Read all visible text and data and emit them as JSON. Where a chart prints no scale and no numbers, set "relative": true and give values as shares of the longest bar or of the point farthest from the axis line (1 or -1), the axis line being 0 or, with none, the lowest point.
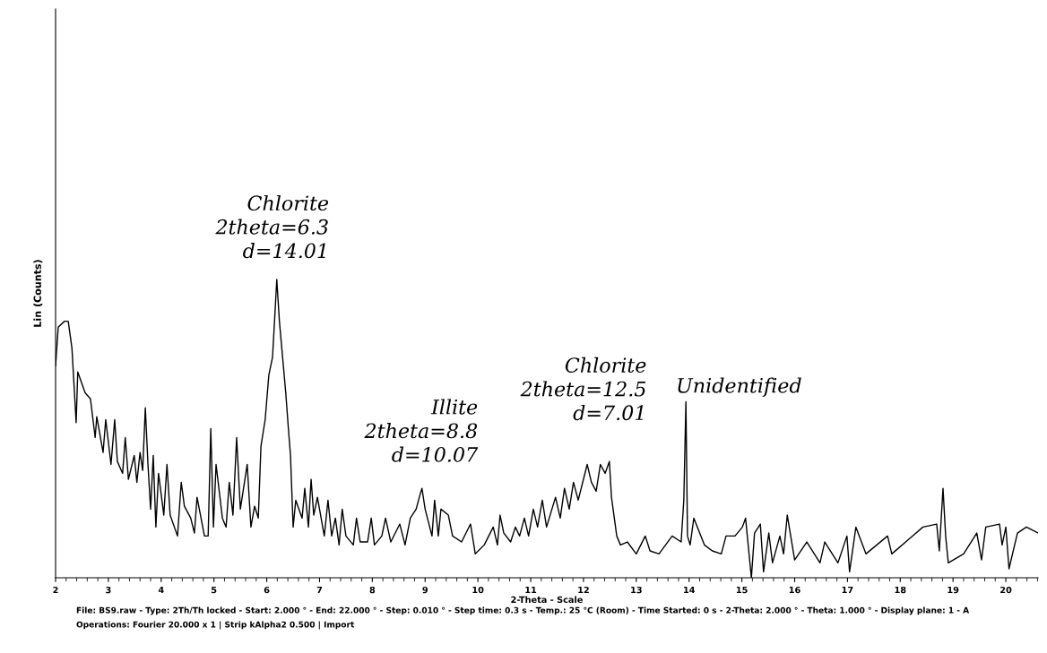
{
  "chart_data": {
    "type": "line",
    "relative": true,
    "xlabel": "2-Theta - Scale",
    "ylabel": "Lin (Counts)",
    "xlim": [
      2,
      20.61
    ],
    "xticks": [
      2,
      3,
      4,
      5,
      6,
      7,
      8,
      9,
      10,
      11,
      12,
      13,
      14,
      15,
      16,
      17,
      18,
      19,
      20
    ],
    "marker": "none",
    "line_style": "solid",
    "annotations": [
      {
        "text": "Chlorite\n2theta=6.3\nd=14.01",
        "x": 6.19,
        "y": 1.0
      },
      {
        "text": "Illite\n2theta=8.8\nd=10.07",
        "x": 8.94,
        "y": 0.3
      },
      {
        "text": "Chlorite\n2theta=12.5\nd=7.01",
        "x": 12.49,
        "y": 0.39
      },
      {
        "text": "Unidentified",
        "x": 13.94,
        "y": 0.59
      },
      "File: BS9.raw - Type: 2Th/Th locked - Start: 2.000 ° - End: 22.000 ° - Step: 0.010 ° - Step time: 0.3 s - Temp.: 25 °C (Room) - Time Started: 0 s - 2-Theta: 2.000 ° - Theta: 1.000 ° - Display plane: 1 - A",
      "Operations: Fourier 20.000 x 1 | Strip kAlpha2 0.500 | Import"
    ],
    "series": [
      {
        "color": "#000000",
        "x": [
          2.0,
          2.05,
          2.17,
          2.24,
          2.31,
          2.39,
          2.42,
          2.56,
          2.66,
          2.75,
          2.78,
          2.9,
          2.95,
          3.05,
          3.12,
          3.17,
          3.27,
          3.32,
          3.38,
          3.49,
          3.54,
          3.6,
          3.65,
          3.7,
          3.75,
          3.8,
          3.85,
          3.9,
          3.95,
          4.05,
          4.11,
          4.17,
          4.31,
          4.38,
          4.44,
          4.56,
          4.63,
          4.68,
          4.82,
          4.89,
          4.94,
          4.99,
          5.04,
          5.16,
          5.23,
          5.29,
          5.36,
          5.43,
          5.5,
          5.63,
          5.7,
          5.77,
          5.84,
          5.89,
          5.97,
          6.04,
          6.11,
          6.16,
          6.19,
          6.24,
          6.3,
          6.36,
          6.41,
          6.45,
          6.5,
          6.55,
          6.67,
          6.72,
          6.79,
          6.84,
          6.89,
          6.96,
          7.09,
          7.16,
          7.23,
          7.3,
          7.37,
          7.43,
          7.5,
          7.64,
          7.7,
          7.77,
          7.91,
          7.98,
          8.04,
          8.18,
          8.25,
          8.35,
          8.52,
          8.62,
          8.72,
          8.83,
          8.89,
          8.94,
          9.0,
          9.13,
          9.18,
          9.25,
          9.3,
          9.44,
          9.52,
          9.69,
          9.86,
          9.95,
          10.12,
          10.29,
          10.37,
          10.42,
          10.49,
          10.62,
          10.71,
          10.79,
          10.88,
          10.96,
          11.05,
          11.13,
          11.22,
          11.3,
          11.47,
          11.56,
          11.64,
          11.73,
          11.81,
          11.9,
          12.07,
          12.15,
          12.24,
          12.32,
          12.41,
          12.49,
          12.53,
          12.63,
          12.7,
          12.83,
          13.0,
          13.17,
          13.26,
          13.43,
          13.68,
          13.85,
          13.9,
          13.94,
          13.97,
          14.02,
          14.09,
          14.29,
          14.44,
          14.61,
          14.7,
          14.87,
          15.01,
          15.07,
          15.18,
          15.24,
          15.35,
          15.41,
          15.51,
          15.58,
          15.72,
          15.79,
          15.86,
          16.0,
          16.23,
          16.48,
          16.57,
          16.82,
          16.99,
          17.04,
          17.16,
          17.35,
          17.76,
          17.84,
          18.43,
          18.69,
          18.74,
          18.81,
          18.86,
          18.91,
          19.2,
          19.45,
          19.54,
          19.62,
          19.88,
          19.93,
          20.0,
          20.06,
          20.22,
          20.39,
          20.61
        ],
        "values": [
          0.71,
          0.84,
          0.86,
          0.86,
          0.77,
          0.52,
          0.69,
          0.62,
          0.6,
          0.47,
          0.54,
          0.42,
          0.53,
          0.38,
          0.53,
          0.39,
          0.35,
          0.47,
          0.33,
          0.41,
          0.32,
          0.42,
          0.36,
          0.57,
          0.38,
          0.23,
          0.41,
          0.17,
          0.35,
          0.21,
          0.38,
          0.21,
          0.14,
          0.32,
          0.24,
          0.2,
          0.15,
          0.27,
          0.14,
          0.14,
          0.5,
          0.17,
          0.38,
          0.2,
          0.17,
          0.32,
          0.21,
          0.47,
          0.23,
          0.38,
          0.17,
          0.24,
          0.2,
          0.44,
          0.53,
          0.68,
          0.74,
          0.9,
          1.0,
          0.86,
          0.74,
          0.62,
          0.5,
          0.41,
          0.17,
          0.26,
          0.2,
          0.3,
          0.17,
          0.33,
          0.21,
          0.27,
          0.14,
          0.26,
          0.14,
          0.2,
          0.11,
          0.23,
          0.14,
          0.11,
          0.2,
          0.12,
          0.12,
          0.2,
          0.11,
          0.14,
          0.2,
          0.12,
          0.18,
          0.11,
          0.2,
          0.23,
          0.27,
          0.3,
          0.23,
          0.14,
          0.26,
          0.14,
          0.23,
          0.21,
          0.14,
          0.12,
          0.18,
          0.08,
          0.11,
          0.17,
          0.11,
          0.21,
          0.15,
          0.12,
          0.17,
          0.14,
          0.2,
          0.14,
          0.23,
          0.17,
          0.26,
          0.17,
          0.27,
          0.2,
          0.3,
          0.23,
          0.32,
          0.26,
          0.38,
          0.32,
          0.29,
          0.38,
          0.35,
          0.39,
          0.27,
          0.14,
          0.11,
          0.12,
          0.08,
          0.14,
          0.09,
          0.08,
          0.14,
          0.12,
          0.26,
          0.59,
          0.14,
          0.11,
          0.2,
          0.11,
          0.09,
          0.08,
          0.14,
          0.14,
          0.17,
          0.2,
          0.0,
          0.15,
          0.18,
          0.02,
          0.15,
          0.05,
          0.14,
          0.08,
          0.21,
          0.06,
          0.12,
          0.05,
          0.12,
          0.05,
          0.14,
          0.02,
          0.17,
          0.08,
          0.14,
          0.08,
          0.17,
          0.18,
          0.09,
          0.3,
          0.14,
          0.05,
          0.08,
          0.15,
          0.06,
          0.17,
          0.18,
          0.11,
          0.17,
          0.03,
          0.15,
          0.17,
          0.15
        ]
      }
    ]
  }
}
